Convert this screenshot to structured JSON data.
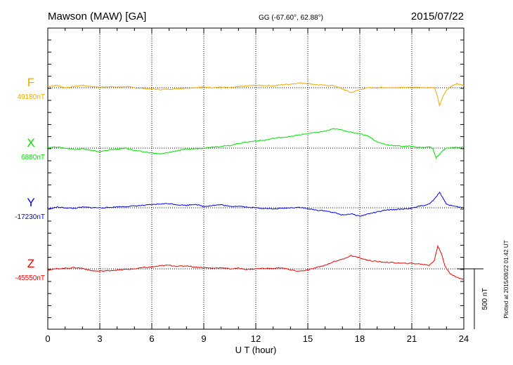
{
  "header": {
    "station": "Mawson (MAW)  [GA]",
    "coords": "GG (-67.60°,  62.88°)",
    "date": "2015/07/22"
  },
  "footer": {
    "plotted_note": "Plotted at 2015/08/22 01:42 UT",
    "scale_label": "500 nT"
  },
  "chart_data": {
    "type": "line",
    "xlabel": "U T (hour)",
    "ylabel": "",
    "xlim": [
      0,
      24
    ],
    "xticks": [
      0,
      3,
      6,
      9,
      12,
      15,
      18,
      21,
      24
    ],
    "x_minor_step": 1,
    "grid": true,
    "scale_bar_nT": 500,
    "series": [
      {
        "name": "F",
        "baseline_label": "49180nT",
        "baseline_nT": 49180,
        "color": "#f0a800",
        "x": [
          0,
          0.5,
          1,
          1.5,
          2,
          2.5,
          3,
          3.5,
          4,
          4.5,
          5,
          5.5,
          6,
          6.5,
          7,
          7.5,
          8,
          8.5,
          9,
          9.5,
          10,
          10.5,
          11,
          11.5,
          12,
          12.5,
          13,
          13.5,
          14,
          14.5,
          15,
          15.5,
          16,
          16.5,
          17,
          17.5,
          18,
          18.5,
          19,
          19.5,
          20,
          20.5,
          21,
          21.5,
          22,
          22.3,
          22.5,
          22.6,
          22.8,
          23,
          23.3,
          23.6,
          24
        ],
        "values": [
          49190,
          49200,
          49180,
          49190,
          49200,
          49190,
          49185,
          49190,
          49185,
          49190,
          49180,
          49175,
          49170,
          49165,
          49168,
          49172,
          49178,
          49182,
          49185,
          49182,
          49185,
          49180,
          49188,
          49195,
          49200,
          49198,
          49195,
          49205,
          49210,
          49220,
          49215,
          49205,
          49200,
          49198,
          49170,
          49140,
          49165,
          49180,
          49180,
          49182,
          49180,
          49185,
          49180,
          49182,
          49180,
          49185,
          49100,
          49030,
          49110,
          49160,
          49195,
          49215,
          49200
        ]
      },
      {
        "name": "X",
        "baseline_label": "6880nT",
        "baseline_nT": 6880,
        "color": "#00e000",
        "x": [
          0,
          0.5,
          1,
          1.5,
          2,
          2.5,
          3,
          3.5,
          4,
          4.5,
          5,
          5.5,
          6,
          6.5,
          7,
          7.5,
          8,
          8.5,
          9,
          9.5,
          10,
          10.5,
          11,
          11.5,
          12,
          12.5,
          13,
          13.5,
          14,
          14.5,
          15,
          15.5,
          16,
          16.5,
          17,
          17.5,
          18,
          18.5,
          19,
          19.5,
          20,
          20.5,
          21,
          21.5,
          22,
          22.2,
          22.4,
          22.6,
          22.8,
          23,
          23.5,
          24
        ],
        "values": [
          6885,
          6890,
          6880,
          6870,
          6875,
          6860,
          6850,
          6865,
          6870,
          6880,
          6860,
          6850,
          6840,
          6830,
          6845,
          6860,
          6870,
          6875,
          6880,
          6890,
          6895,
          6900,
          6920,
          6930,
          6940,
          6945,
          6960,
          6970,
          6975,
          6990,
          7000,
          7010,
          7020,
          7040,
          7030,
          7010,
          7000,
          6980,
          6930,
          6910,
          6900,
          6895,
          6895,
          6885,
          6890,
          6880,
          6800,
          6830,
          6860,
          6880,
          6885,
          6885
        ]
      },
      {
        "name": "Y",
        "baseline_label": "-17230nT",
        "baseline_nT": -17230,
        "color": "#0000ee",
        "x": [
          0,
          0.5,
          1,
          1.5,
          2,
          2.5,
          3,
          3.5,
          4,
          4.5,
          5,
          5.5,
          6,
          6.5,
          7,
          7.5,
          8,
          8.5,
          9,
          9.5,
          10,
          10.5,
          11,
          11.5,
          12,
          12.5,
          13,
          13.5,
          14,
          14.5,
          15,
          15.5,
          16,
          16.5,
          17,
          17.5,
          18,
          18.5,
          19,
          19.5,
          20,
          20.5,
          21,
          21.5,
          22,
          22.3,
          22.6,
          22.8,
          23,
          23.5,
          24
        ],
        "values": [
          -17240,
          -17225,
          -17230,
          -17235,
          -17225,
          -17228,
          -17230,
          -17228,
          -17222,
          -17220,
          -17215,
          -17210,
          -17205,
          -17198,
          -17195,
          -17205,
          -17210,
          -17200,
          -17220,
          -17210,
          -17205,
          -17220,
          -17215,
          -17225,
          -17230,
          -17235,
          -17240,
          -17235,
          -17230,
          -17225,
          -17238,
          -17250,
          -17255,
          -17270,
          -17290,
          -17280,
          -17300,
          -17280,
          -17265,
          -17250,
          -17245,
          -17240,
          -17235,
          -17215,
          -17200,
          -17160,
          -17100,
          -17150,
          -17200,
          -17220,
          -17230
        ]
      },
      {
        "name": "Z",
        "baseline_label": "-45550nT",
        "baseline_nT": -45550,
        "color": "#ee0000",
        "x": [
          0,
          0.5,
          1,
          1.5,
          2,
          2.5,
          3,
          3.5,
          4,
          4.5,
          5,
          5.5,
          6,
          6.5,
          7,
          7.5,
          8,
          8.5,
          9,
          9.5,
          10,
          10.5,
          11,
          11.5,
          12,
          12.5,
          13,
          13.5,
          14,
          14.5,
          15,
          15.5,
          16,
          16.5,
          17,
          17.5,
          18,
          18.5,
          19,
          19.5,
          20,
          20.5,
          21,
          21.5,
          22,
          22.3,
          22.5,
          22.7,
          22.9,
          23.2,
          23.6,
          24
        ],
        "values": [
          -45560,
          -45550,
          -45545,
          -45540,
          -45545,
          -45565,
          -45570,
          -45565,
          -45560,
          -45555,
          -45550,
          -45540,
          -45535,
          -45525,
          -45520,
          -45530,
          -45525,
          -45535,
          -45540,
          -45545,
          -45540,
          -45550,
          -45545,
          -45555,
          -45550,
          -45545,
          -45548,
          -45540,
          -45560,
          -45570,
          -45560,
          -45540,
          -45520,
          -45490,
          -45470,
          -45440,
          -45460,
          -45480,
          -45490,
          -45495,
          -45500,
          -45505,
          -45505,
          -45510,
          -45520,
          -45480,
          -45360,
          -45420,
          -45520,
          -45590,
          -45620,
          -45640
        ]
      }
    ]
  }
}
